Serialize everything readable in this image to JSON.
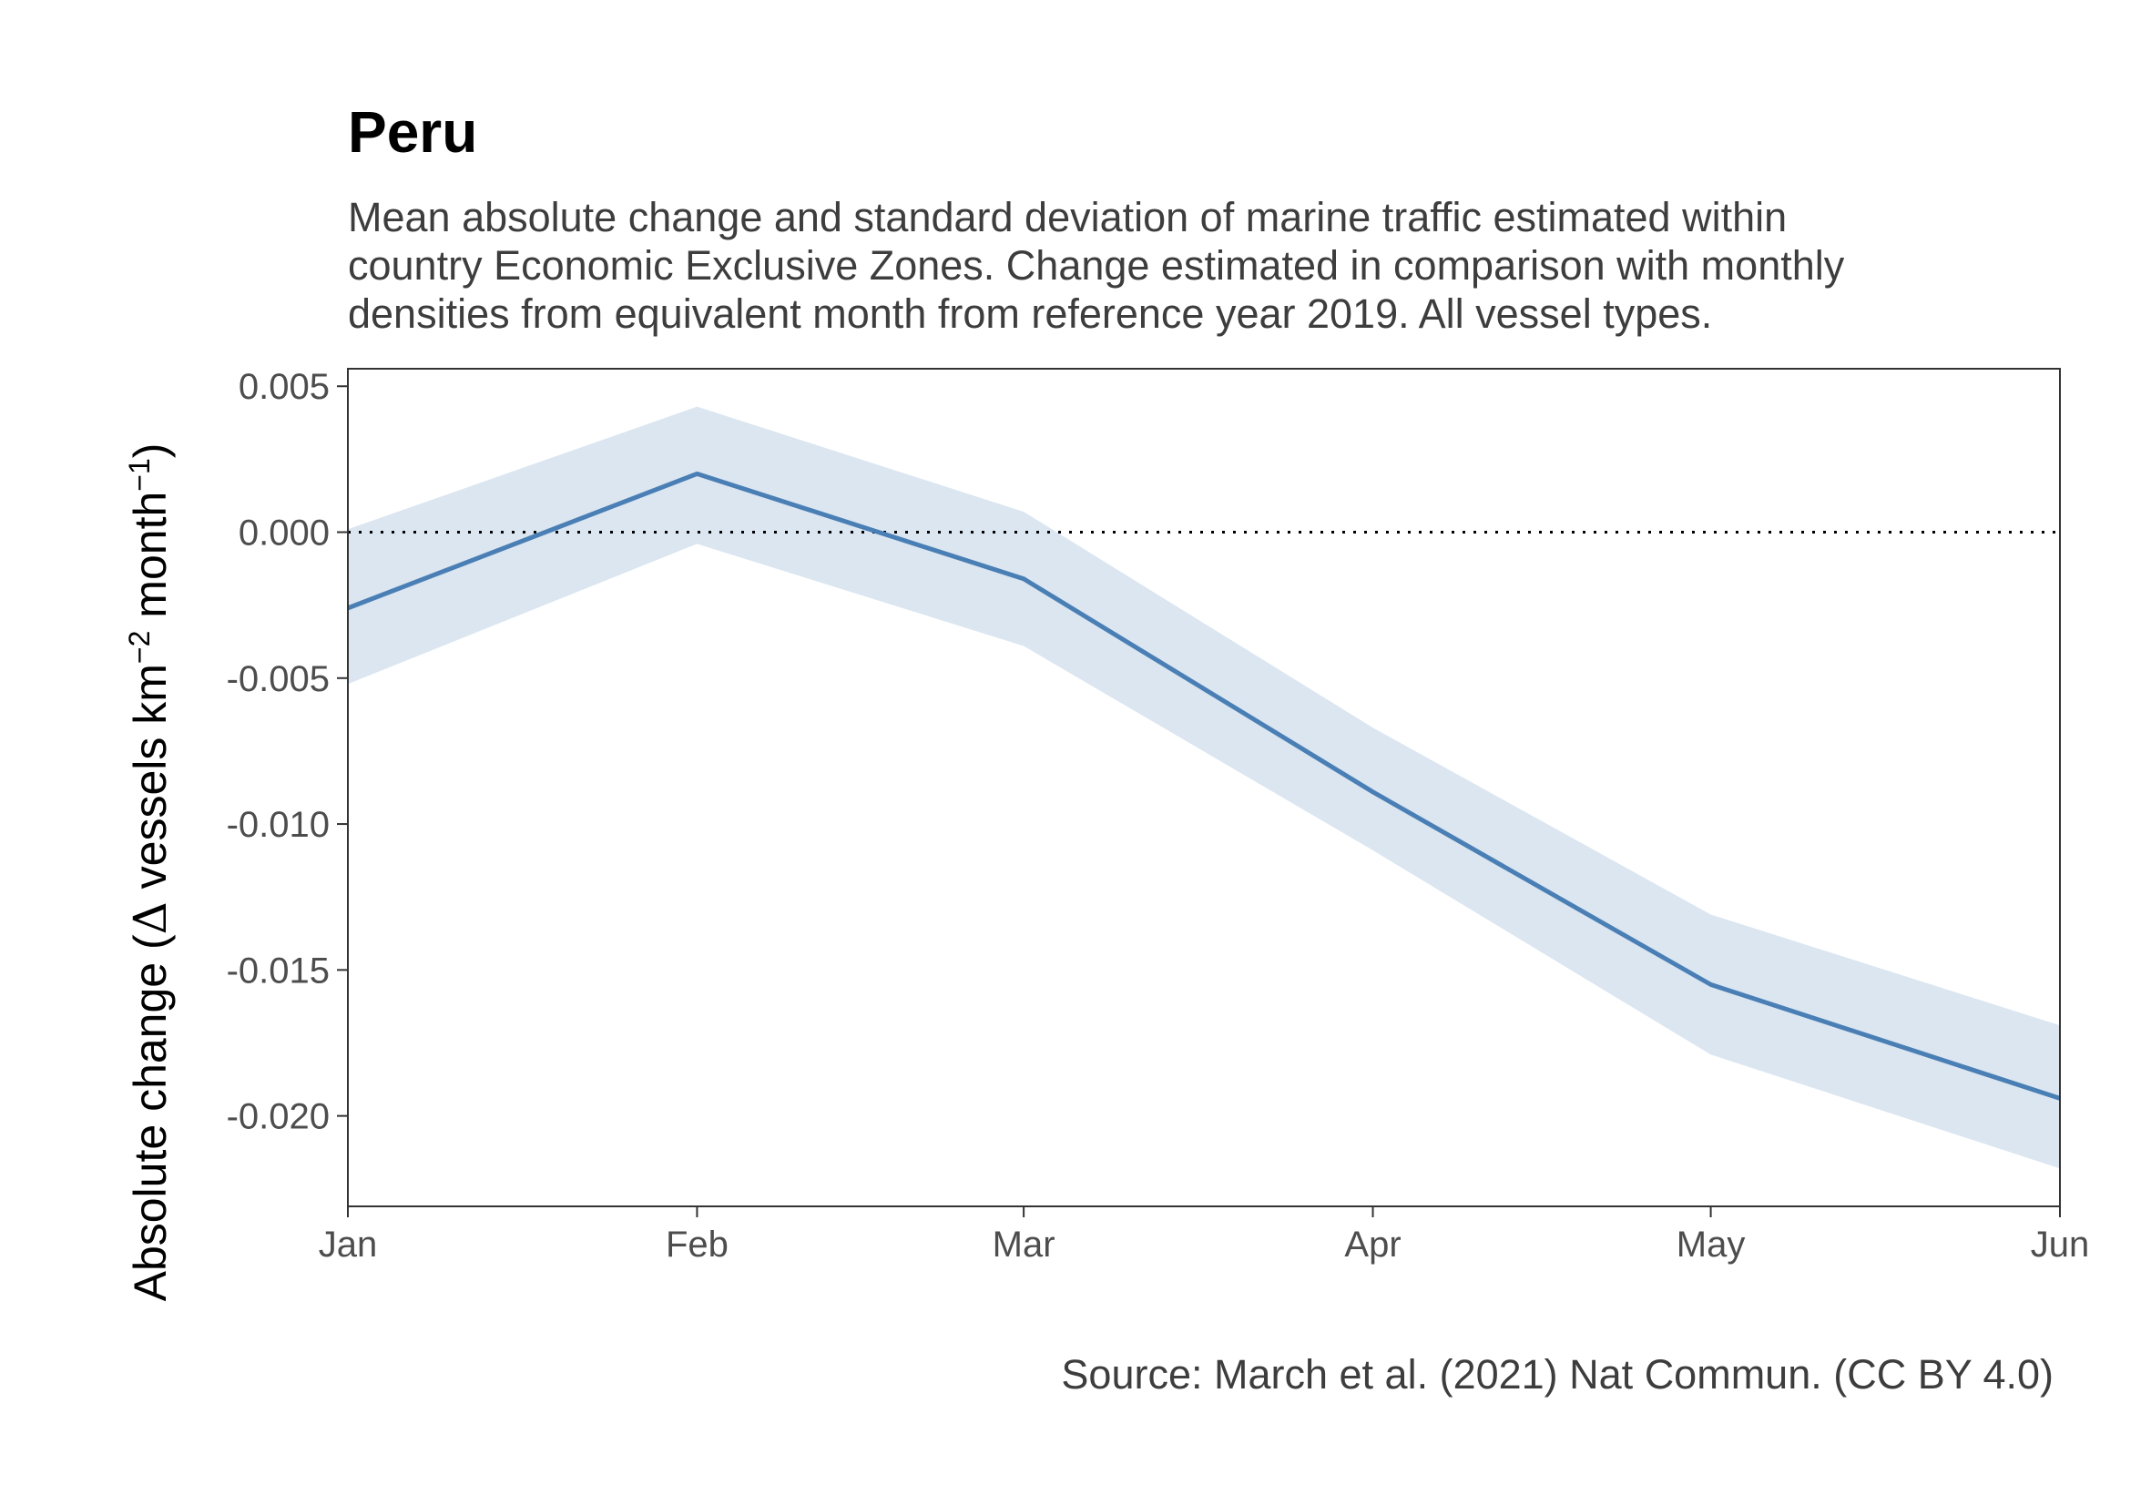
{
  "chart_data": {
    "type": "line",
    "title": "Peru",
    "subtitle": [
      "Mean absolute change and standard deviation of marine traffic estimated within",
      "country Economic Exclusive Zones. Change estimated in comparison with monthly",
      "densities from equivalent month from reference year 2019. All vessel types."
    ],
    "caption": "Source: March et al. (2021) Nat Commun. (CC BY 4.0)",
    "ylabel": {
      "prefix": "Absolute change (",
      "delta": "Δ",
      "mid1": " vessels km",
      "sup1": "−2",
      "mid2": " month",
      "sup2": "−1",
      "suffix": ")"
    },
    "categories": [
      "Jan",
      "Feb",
      "Mar",
      "Apr",
      "May",
      "Jun"
    ],
    "x_day_of_year": [
      1,
      32,
      61,
      92,
      122,
      153
    ],
    "series": [
      {
        "mean": [
          -0.0026,
          0.002,
          -0.0016,
          -0.0089,
          -0.0155,
          -0.0194
        ],
        "lower": [
          -0.0052,
          -0.0004,
          -0.0039,
          -0.0109,
          -0.0179,
          -0.0218
        ],
        "upper": [
          0.0001,
          0.0043,
          0.0007,
          -0.0067,
          -0.0131,
          -0.0169
        ]
      }
    ],
    "yticks": [
      0.005,
      0.0,
      -0.005,
      -0.01,
      -0.015,
      -0.02
    ],
    "ytick_labels": [
      "0.005",
      "0.000",
      "-0.005",
      "-0.010",
      "-0.015",
      "-0.020"
    ],
    "ylim": [
      -0.0231,
      0.0056
    ],
    "reference_line": 0.0,
    "colors": {
      "line": "#4a7fb5",
      "ribbon": "#dbe6f1",
      "axis": "#333333",
      "reference": "#000000"
    }
  }
}
